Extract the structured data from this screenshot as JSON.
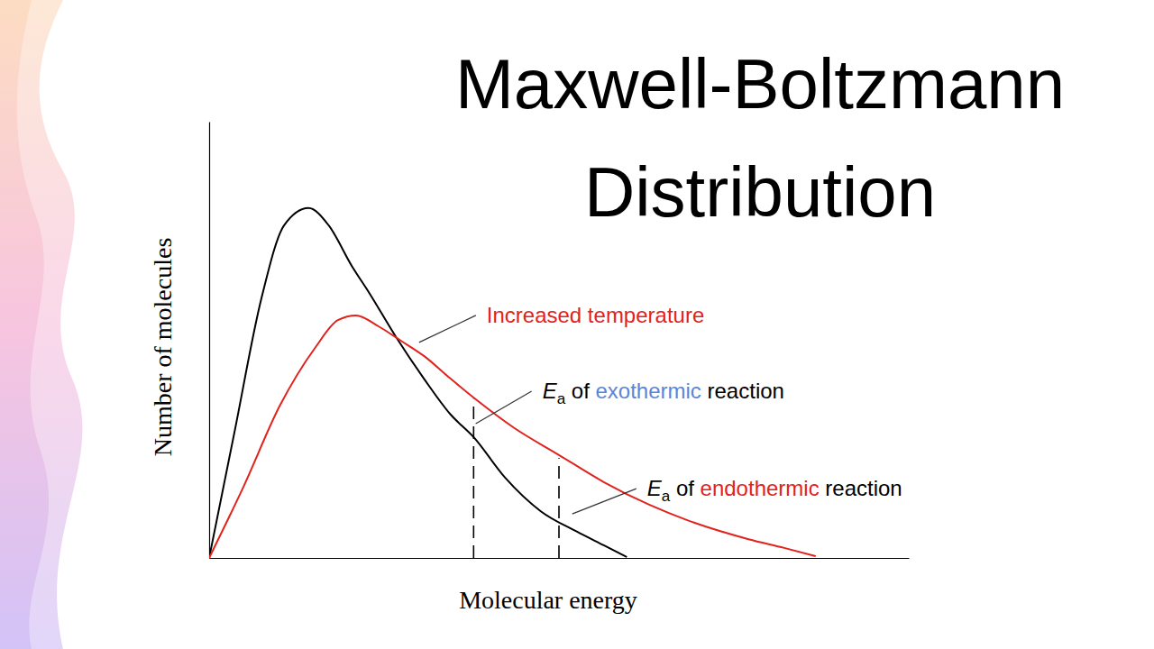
{
  "chart_data": {
    "type": "line",
    "title": "Maxwell-Boltzmann Distribution",
    "x_label": "Molecular energy",
    "y_label": "Number of molecules",
    "xlim": [
      0,
      100
    ],
    "ylim": [
      0,
      100
    ],
    "tick_labels": false,
    "series": [
      {
        "color": "#000000",
        "x": [
          0,
          3.6,
          7.5,
          10.7,
          14.2,
          17.1,
          20.4,
          22.9,
          26.8,
          30.7,
          34.5,
          37.8,
          42.3,
          47.4,
          52.6,
          56.4,
          59.7
        ],
        "values": [
          0,
          28.7,
          59.7,
          76.2,
          80.2,
          76.2,
          66.9,
          60.7,
          50.4,
          41.1,
          32.9,
          27.7,
          18.4,
          10.7,
          6.0,
          2.9,
          0.2
        ]
      },
      {
        "color": "#e0231c",
        "x": [
          0,
          4.9,
          10.1,
          15.2,
          18.4,
          21.0,
          24.2,
          27.4,
          30.7,
          34.5,
          38.4,
          43.6,
          50.0,
          56.4,
          62.9,
          69.3,
          77.1,
          82.2,
          86.7
        ],
        "values": [
          0,
          16.3,
          34.9,
          48.3,
          54.5,
          55.6,
          53.1,
          49.8,
          46.3,
          41.1,
          36.0,
          29.8,
          23.6,
          17.4,
          12.2,
          8.1,
          4.3,
          2.3,
          0.4
        ]
      }
    ],
    "vlines": [
      {
        "x": 37.8,
        "y": 36.4,
        "line_style": "dashed"
      },
      {
        "x": 50.0,
        "y": 22.9,
        "line_style": "dashed"
      }
    ],
    "annotations": [
      {
        "x": 30.0,
        "y": 49.4,
        "parts": [
          {
            "text": "Increased temperature",
            "color": "#e0231c"
          }
        ]
      },
      {
        "x": 38.1,
        "y": 30.8,
        "symbol": "E",
        "subscript": "a",
        "parts": [
          {
            "text": " of "
          },
          {
            "text": "exothermic",
            "color": "#5b86d6"
          },
          {
            "text": " reaction"
          }
        ]
      },
      {
        "x": 51.9,
        "y": 10.1,
        "symbol": "E",
        "subscript": "a",
        "parts": [
          {
            "text": " of "
          },
          {
            "text": "endothermic",
            "color": "#e0231c"
          },
          {
            "text": " reaction"
          }
        ]
      }
    ]
  }
}
